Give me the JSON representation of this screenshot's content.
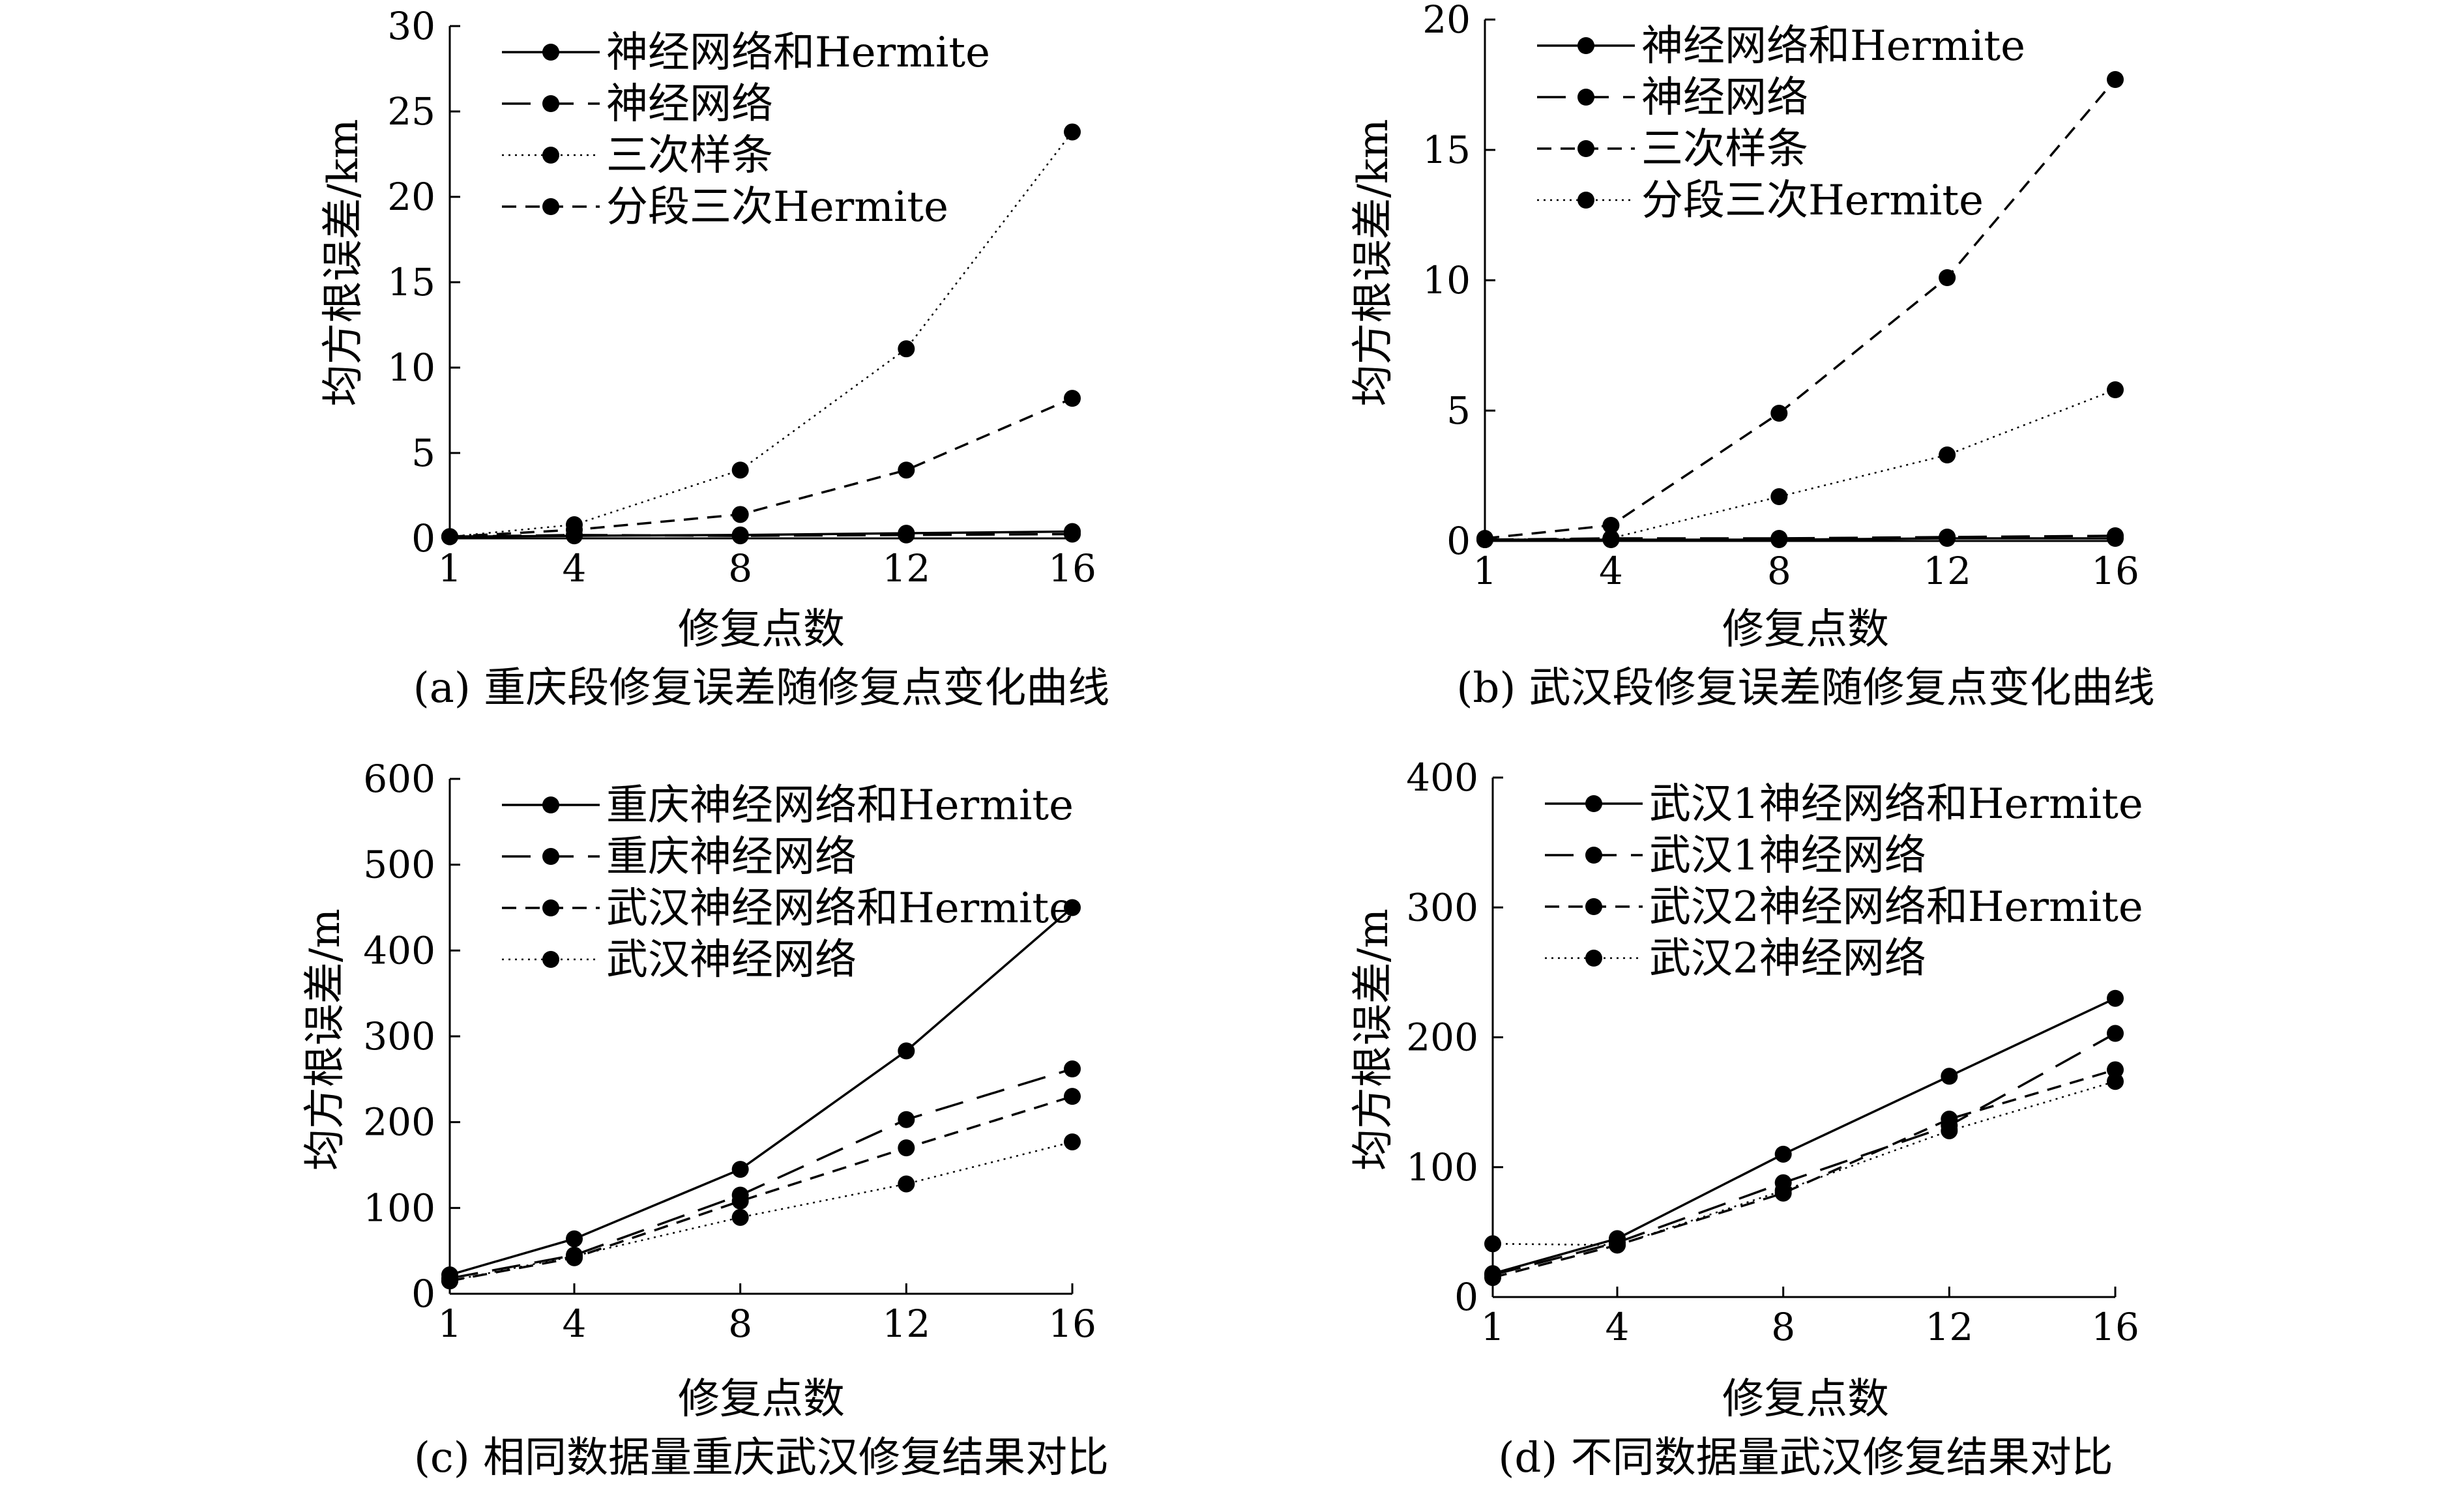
{
  "figure": {
    "background": "#ffffff",
    "ink": "#000000"
  },
  "chart_data": [
    {
      "id": "a",
      "type": "line",
      "caption": "(a) 重庆段修复误差随修复点变化曲线",
      "xlabel": "修复点数",
      "ylabel": "均方根误差/km",
      "x": [
        1,
        4,
        8,
        12,
        16
      ],
      "xticks": [
        "1",
        "4",
        "8",
        "12",
        "16"
      ],
      "yticks": [
        0,
        5,
        10,
        15,
        20,
        25,
        30
      ],
      "ylim": [
        0,
        30
      ],
      "legend_position": "top-left",
      "series": [
        {
          "name": "神经网络和Hermite",
          "style": "solid",
          "values": [
            0.1,
            0.15,
            0.2,
            0.3,
            0.4
          ]
        },
        {
          "name": "神经网络",
          "style": "long-dash",
          "values": [
            0.1,
            0.2,
            0.15,
            0.2,
            0.25
          ]
        },
        {
          "name": "三次样条",
          "style": "dotted",
          "values": [
            0.1,
            0.8,
            4.0,
            11.1,
            23.8
          ]
        },
        {
          "name": "分段三次Hermite",
          "style": "dash",
          "values": [
            0.1,
            0.5,
            1.4,
            4.0,
            8.2
          ]
        }
      ]
    },
    {
      "id": "b",
      "type": "line",
      "caption": "(b) 武汉段修复误差随修复点变化曲线",
      "xlabel": "修复点数",
      "ylabel": "均方根误差/km",
      "x": [
        1,
        4,
        8,
        12,
        16
      ],
      "xticks": [
        "1",
        "4",
        "8",
        "12",
        "16"
      ],
      "yticks": [
        0,
        5,
        10,
        15,
        20
      ],
      "ylim": [
        0,
        20
      ],
      "legend_position": "top-left",
      "series": [
        {
          "name": "神经网络和Hermite",
          "style": "solid",
          "values": [
            0.05,
            0.05,
            0.05,
            0.1,
            0.1
          ]
        },
        {
          "name": "神经网络",
          "style": "long-dash",
          "values": [
            0.05,
            0.1,
            0.1,
            0.15,
            0.2
          ]
        },
        {
          "name": "三次样条",
          "style": "dash",
          "values": [
            0.1,
            0.6,
            4.9,
            10.1,
            17.7
          ]
        },
        {
          "name": "分段三次Hermite",
          "style": "dotted",
          "values": [
            0.05,
            0.1,
            1.7,
            3.3,
            5.8
          ]
        }
      ]
    },
    {
      "id": "c",
      "type": "line",
      "caption": "(c) 相同数据量重庆武汉修复结果对比",
      "xlabel": "修复点数",
      "ylabel": "均方根误差/m",
      "x": [
        1,
        4,
        8,
        12,
        16
      ],
      "xticks": [
        "1",
        "4",
        "8",
        "12",
        "16"
      ],
      "yticks": [
        0,
        100,
        200,
        300,
        400,
        500,
        600
      ],
      "ylim": [
        0,
        600
      ],
      "legend_position": "top-left",
      "series": [
        {
          "name": "重庆神经网络和Hermite",
          "style": "solid",
          "values": [
            22,
            64,
            145,
            283,
            450
          ]
        },
        {
          "name": "重庆神经网络",
          "style": "long-dash",
          "values": [
            18,
            45,
            115,
            203,
            262
          ]
        },
        {
          "name": "武汉神经网络和Hermite",
          "style": "dash",
          "values": [
            15,
            42,
            108,
            170,
            230
          ]
        },
        {
          "name": "武汉神经网络",
          "style": "dotted",
          "values": [
            15,
            44,
            89,
            128,
            177
          ]
        }
      ]
    },
    {
      "id": "d",
      "type": "line",
      "caption": "(d) 不同数据量武汉修复结果对比",
      "xlabel": "修复点数",
      "ylabel": "均方根误差/m",
      "x": [
        1,
        4,
        8,
        12,
        16
      ],
      "xticks": [
        "1",
        "4",
        "8",
        "12",
        "16"
      ],
      "yticks": [
        0,
        100,
        200,
        300,
        400
      ],
      "ylim": [
        0,
        400
      ],
      "legend_position": "top-left",
      "series": [
        {
          "name": "武汉1神经网络和Hermite",
          "style": "solid",
          "values": [
            18,
            45,
            110,
            170,
            230
          ]
        },
        {
          "name": "武汉1神经网络",
          "style": "long-dash",
          "values": [
            17,
            42,
            88,
            132,
            203
          ]
        },
        {
          "name": "武汉2神经网络和Hermite",
          "style": "dash",
          "values": [
            15,
            40,
            80,
            137,
            175
          ]
        },
        {
          "name": "武汉2神经网络",
          "style": "dotted",
          "values": [
            41,
            40,
            82,
            128,
            166
          ]
        }
      ]
    }
  ]
}
